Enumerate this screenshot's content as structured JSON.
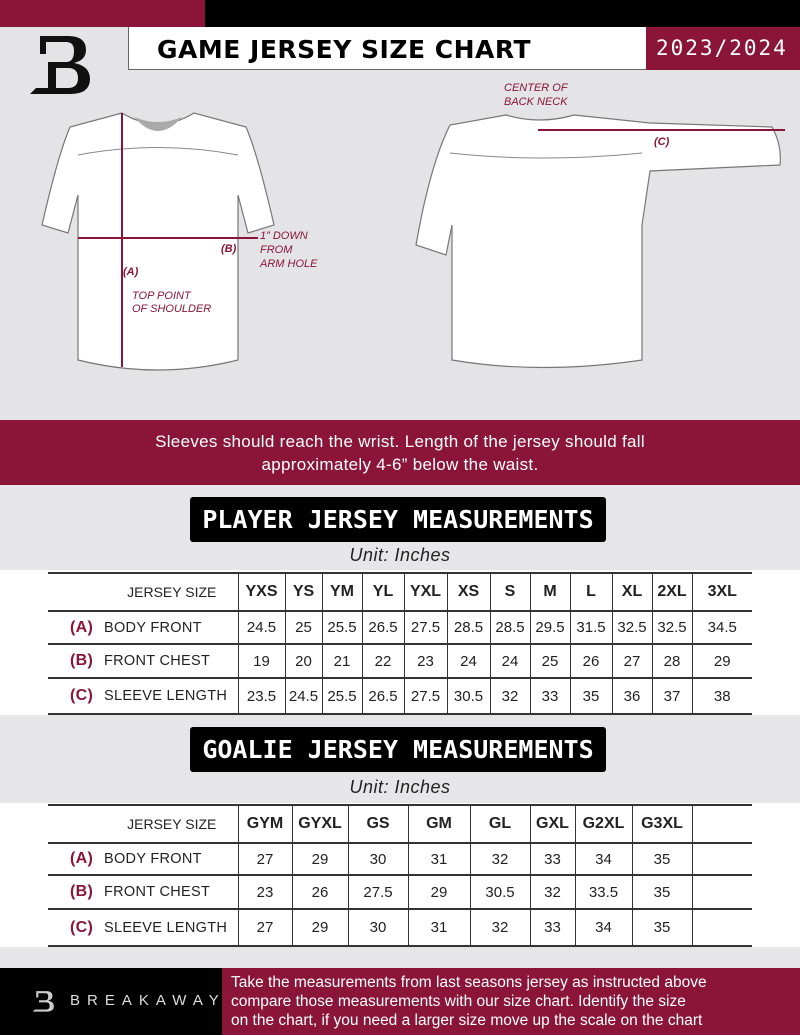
{
  "header": {
    "title": "GAME JERSEY SIZE CHART",
    "season": "2023/2024",
    "logo": "B"
  },
  "diagram": {
    "front_labels": {
      "a": "(A)",
      "a_desc": [
        "TOP POINT",
        "OF SHOULDER"
      ],
      "b": "(B)",
      "b_desc": [
        "1” DOWN",
        "FROM",
        "ARM HOLE"
      ]
    },
    "back_labels": {
      "center": [
        "CENTER OF",
        "BACK NECK"
      ],
      "c": "(C)"
    }
  },
  "instructions": [
    "Sleeves should reach the wrist. Length of the jersey should fall",
    "approximately 4-6” below the waist."
  ],
  "player": {
    "heading": "PLAYER JERSEY MEASUREMENTS",
    "unit": "Unit: Inches",
    "size_label": "JERSEY SIZE",
    "sizes": [
      "YXS",
      "YS",
      "YM",
      "YL",
      "YXL",
      "XS",
      "S",
      "M",
      "L",
      "XL",
      "2XL",
      "3XL"
    ],
    "rows": [
      {
        "key": "(A)",
        "label": "BODY FRONT",
        "values": [
          "24.5",
          "25",
          "25.5",
          "26.5",
          "27.5",
          "28.5",
          "28.5",
          "29.5",
          "31.5",
          "32.5",
          "32.5",
          "34.5"
        ]
      },
      {
        "key": "(B)",
        "label": "FRONT CHEST",
        "values": [
          "19",
          "20",
          "21",
          "22",
          "23",
          "24",
          "24",
          "25",
          "26",
          "27",
          "28",
          "29"
        ]
      },
      {
        "key": "(C)",
        "label": "SLEEVE LENGTH",
        "values": [
          "23.5",
          "24.5",
          "25.5",
          "26.5",
          "27.5",
          "30.5",
          "32",
          "33",
          "35",
          "36",
          "37",
          "38"
        ]
      }
    ]
  },
  "goalie": {
    "heading": "GOALIE JERSEY MEASUREMENTS",
    "unit": "Unit: Inches",
    "size_label": "JERSEY SIZE",
    "sizes": [
      "GYM",
      "GYXL",
      "GS",
      "GM",
      "GL",
      "GXL",
      "G2XL",
      "G3XL",
      ""
    ],
    "rows": [
      {
        "key": "(A)",
        "label": "BODY FRONT",
        "values": [
          "27",
          "29",
          "30",
          "31",
          "32",
          "33",
          "34",
          "35",
          ""
        ]
      },
      {
        "key": "(B)",
        "label": "FRONT CHEST",
        "values": [
          "23",
          "26",
          "27.5",
          "29",
          "30.5",
          "32",
          "33.5",
          "35",
          ""
        ]
      },
      {
        "key": "(C)",
        "label": "SLEEVE LENGTH",
        "values": [
          "27",
          "29",
          "30",
          "31",
          "32",
          "33",
          "34",
          "35",
          ""
        ]
      }
    ]
  },
  "footer": {
    "brand": "BREAKAWAY",
    "text": [
      "Take the measurements from last seasons jersey as instructed above",
      "compare those measurements  with our size chart. Identify the size",
      "on the chart, if you need a larger size move up the scale on the chart"
    ]
  },
  "colors": {
    "accent": "#8a1538",
    "dark": "#000000"
  }
}
